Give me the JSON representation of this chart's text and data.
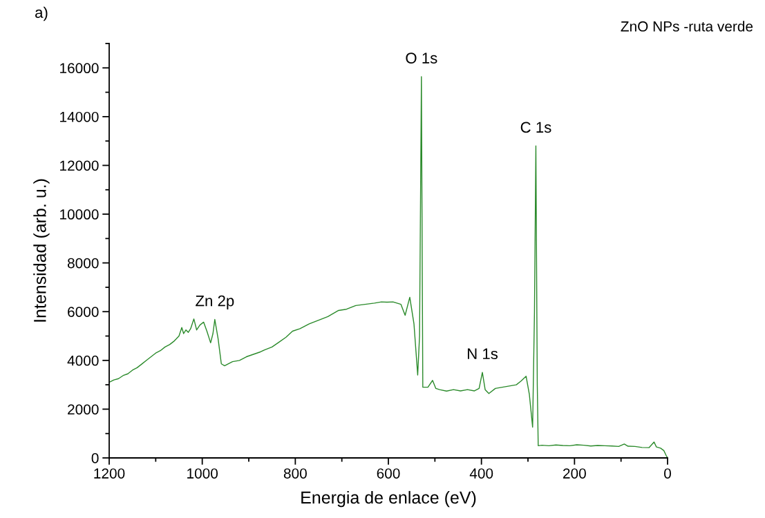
{
  "chart_data": {
    "type": "line",
    "title": "ZnO NPs -ruta verde",
    "xlabel": "Energia de enlace (eV)",
    "ylabel": "Intensidad (arb. u.)",
    "x": [
      1200,
      1190,
      1180,
      1170,
      1160,
      1150,
      1140,
      1130,
      1120,
      1110,
      1100,
      1090,
      1080,
      1070,
      1060,
      1050,
      1044,
      1040,
      1035,
      1030,
      1025,
      1018,
      1012,
      1005,
      997,
      990,
      982,
      977,
      973,
      966,
      959,
      952,
      945,
      935,
      920,
      905,
      890,
      875,
      866,
      850,
      835,
      820,
      806,
      790,
      770,
      750,
      730,
      707,
      690,
      670,
      650,
      630,
      615,
      603,
      590,
      573,
      564,
      554,
      545,
      537,
      533,
      529,
      527,
      526,
      515,
      505,
      498,
      490,
      475,
      460,
      445,
      430,
      415,
      405,
      398,
      392,
      384,
      370,
      355,
      340,
      325,
      315,
      304,
      297,
      290,
      286,
      283,
      280,
      278,
      270,
      255,
      240,
      225,
      210,
      195,
      180,
      165,
      150,
      135,
      120,
      105,
      93,
      85,
      70,
      55,
      40,
      29,
      24,
      15,
      8,
      3,
      0
    ],
    "values": [
      3100,
      3200,
      3250,
      3380,
      3450,
      3600,
      3700,
      3850,
      4000,
      4150,
      4300,
      4400,
      4550,
      4650,
      4800,
      5000,
      5350,
      5100,
      5250,
      5150,
      5300,
      5700,
      5250,
      5450,
      5570,
      5200,
      4720,
      5100,
      5680,
      4900,
      3860,
      3780,
      3850,
      3950,
      4000,
      4150,
      4250,
      4350,
      4430,
      4550,
      4750,
      4950,
      5200,
      5300,
      5500,
      5650,
      5800,
      6050,
      6100,
      6250,
      6300,
      6350,
      6400,
      6390,
      6400,
      6300,
      5850,
      6590,
      5500,
      3400,
      5000,
      15640,
      7000,
      2900,
      2900,
      3180,
      2850,
      2800,
      2740,
      2800,
      2750,
      2800,
      2750,
      2850,
      3510,
      2800,
      2640,
      2850,
      2900,
      2950,
      3000,
      3150,
      3350,
      2600,
      1260,
      6000,
      12800,
      3000,
      500,
      520,
      500,
      530,
      510,
      500,
      540,
      520,
      490,
      510,
      500,
      490,
      470,
      570,
      480,
      470,
      430,
      420,
      650,
      450,
      400,
      300,
      100,
      0
    ],
    "color": "#2a8a2a",
    "line_style": "solid",
    "marker": "none",
    "xlim": [
      1200,
      0
    ],
    "xticks": [
      1200,
      {
        "value": 1100,
        "label": null
      },
      1000,
      {
        "value": 900,
        "label": null
      },
      800,
      {
        "value": 700,
        "label": null
      },
      600,
      {
        "value": 500,
        "label": null
      },
      400,
      {
        "value": 300,
        "label": null
      },
      200,
      {
        "value": 100,
        "label": null
      },
      0
    ],
    "ylim": [
      0,
      17000
    ],
    "yticks": [
      0,
      {
        "value": 1000,
        "label": null
      },
      2000,
      {
        "value": 3000,
        "label": null
      },
      4000,
      {
        "value": 5000,
        "label": null
      },
      6000,
      {
        "value": 7000,
        "label": null
      },
      8000,
      {
        "value": 9000,
        "label": null
      },
      10000,
      {
        "value": 11000,
        "label": null
      },
      12000,
      {
        "value": 13000,
        "label": null
      },
      14000,
      {
        "value": 15000,
        "label": null
      },
      16000,
      {
        "value": 17000,
        "label": null
      }
    ],
    "grid": false,
    "legend": false,
    "annotations": [
      "a)",
      {
        "text": "O 1s",
        "x": 529,
        "y": 15640
      },
      {
        "text": "C 1s",
        "x": 283,
        "y": 12800
      },
      {
        "text": "Zn 2p",
        "x": 973,
        "y": 5680
      },
      {
        "text": "N 1s",
        "x": 398,
        "y": 3510
      }
    ]
  }
}
